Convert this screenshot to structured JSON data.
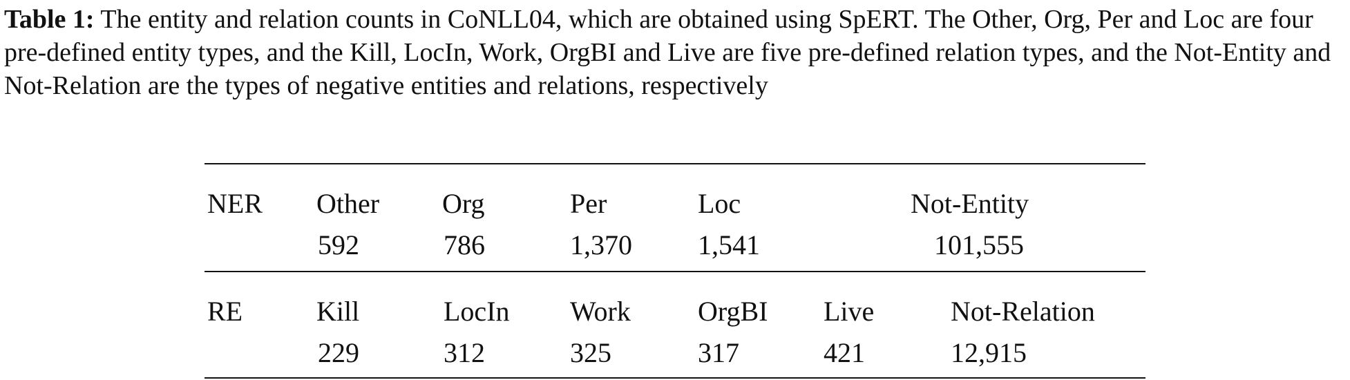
{
  "caption": {
    "label": "Table 1:",
    "text": "The entity and relation counts in CoNLL04, which are obtained using SpERT. The Other, Org, Per and Loc are four pre-defined entity types, and the Kill, LocIn, Work, OrgBI and Live are five pre-defined relation types, and the Not-Entity and Not-Relation are the types of negative entities and relations, respectively"
  },
  "table": {
    "ner": {
      "label": "NER",
      "types": [
        "Other",
        "Org",
        "Per",
        "Loc",
        "Not-Entity"
      ],
      "counts": [
        "592",
        "786",
        "1,370",
        "1,541",
        "101,555"
      ]
    },
    "re": {
      "label": "RE",
      "types": [
        "Kill",
        "LocIn",
        "Work",
        "OrgBI",
        "Live",
        "Not-Relation"
      ],
      "counts": [
        "229",
        "312",
        "325",
        "317",
        "421",
        "12,915"
      ]
    }
  }
}
